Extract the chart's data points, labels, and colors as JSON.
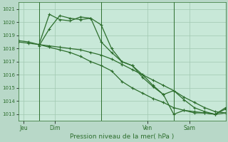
{
  "background_color": "#b8d8c8",
  "plot_bg_color": "#c8e8d8",
  "grid_color": "#a0c8b0",
  "line_color": "#2d6e2d",
  "title": "Pression niveau de la mer( hPa )",
  "ylim": [
    1012.5,
    1021.5
  ],
  "yticks": [
    1013,
    1014,
    1015,
    1016,
    1017,
    1018,
    1019,
    1020,
    1021
  ],
  "xlim": [
    0,
    20
  ],
  "day_positions": [
    0.5,
    3.5,
    12.5,
    16.5
  ],
  "day_labels": [
    "Jeu",
    "Dim",
    "Ven",
    "Sam"
  ],
  "vlines": [
    2,
    8,
    15
  ],
  "line1": {
    "x": [
      0,
      1,
      2,
      3,
      4,
      5,
      6,
      7,
      8,
      9,
      10,
      11,
      12,
      13,
      14,
      15,
      16,
      17,
      18,
      19,
      20
    ],
    "y": [
      1018.5,
      1018.4,
      1018.3,
      1018.2,
      1018.1,
      1018.0,
      1017.9,
      1017.7,
      1017.5,
      1017.2,
      1016.8,
      1016.4,
      1016.0,
      1015.6,
      1015.2,
      1014.8,
      1014.3,
      1013.9,
      1013.5,
      1013.2,
      1013.1
    ]
  },
  "line2": {
    "x": [
      2,
      3,
      4,
      5,
      6,
      7,
      8,
      9,
      10,
      11,
      12,
      13,
      14,
      15,
      16,
      17,
      18,
      19,
      20
    ],
    "y": [
      1018.2,
      1019.5,
      1020.5,
      1020.3,
      1020.2,
      1020.3,
      1019.8,
      1018.0,
      1017.0,
      1016.7,
      1016.0,
      1015.2,
      1014.5,
      1013.0,
      1013.3,
      1013.1,
      1013.1,
      1013.0,
      1013.4
    ]
  },
  "line3": {
    "x": [
      2,
      3,
      4,
      5,
      6,
      7,
      8,
      9,
      10,
      11,
      12,
      13,
      14,
      15,
      16,
      17,
      18,
      19,
      20
    ],
    "y": [
      1018.3,
      1020.6,
      1020.2,
      1020.1,
      1020.4,
      1020.3,
      1018.5,
      1017.7,
      1017.0,
      1016.7,
      1015.8,
      1015.1,
      1014.5,
      1014.8,
      1014.1,
      1013.5,
      1013.2,
      1013.0,
      1013.5
    ]
  },
  "line4": {
    "x": [
      0,
      1,
      2,
      3,
      4,
      5,
      6,
      7,
      8,
      9,
      10,
      11,
      12,
      13,
      14,
      15,
      16,
      17,
      18,
      19,
      20
    ],
    "y": [
      1018.6,
      1018.5,
      1018.3,
      1018.1,
      1017.9,
      1017.7,
      1017.4,
      1017.0,
      1016.7,
      1016.3,
      1015.5,
      1015.0,
      1014.6,
      1014.2,
      1013.9,
      1013.5,
      1013.3,
      1013.2,
      1013.1,
      1013.0,
      1013.1
    ]
  }
}
